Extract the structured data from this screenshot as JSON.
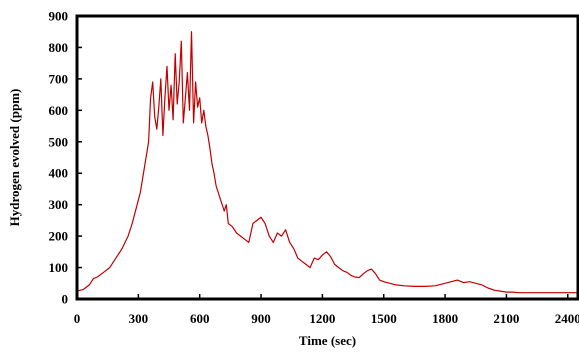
{
  "chart_data": {
    "type": "line",
    "title": "",
    "xlabel": "Time (sec)",
    "ylabel": "Hydrogen evolved (ppm)",
    "xlim": [
      0,
      2450
    ],
    "ylim": [
      0,
      900
    ],
    "x_ticks": [
      0,
      300,
      600,
      900,
      1200,
      1500,
      1800,
      2100,
      2400
    ],
    "x_tick_labels": [
      "0",
      "300",
      "600",
      "900",
      "1200",
      "1500",
      "1800",
      "2100",
      "2400"
    ],
    "y_ticks": [
      0,
      100,
      200,
      300,
      400,
      500,
      600,
      700,
      800,
      900
    ],
    "y_tick_labels": [
      "0",
      "100",
      "200",
      "300",
      "400",
      "500",
      "600",
      "700",
      "800",
      "900"
    ],
    "grid": false,
    "legend": "none",
    "series": [
      {
        "color": "#c00000",
        "x": [
          0,
          30,
          60,
          80,
          100,
          130,
          160,
          190,
          220,
          250,
          270,
          290,
          310,
          330,
          350,
          360,
          370,
          380,
          390,
          400,
          410,
          420,
          430,
          440,
          450,
          460,
          470,
          480,
          490,
          500,
          510,
          520,
          530,
          540,
          550,
          560,
          570,
          580,
          590,
          600,
          610,
          620,
          630,
          640,
          650,
          660,
          670,
          680,
          690,
          700,
          710,
          720,
          730,
          740,
          760,
          780,
          800,
          820,
          840,
          860,
          880,
          900,
          920,
          940,
          960,
          980,
          1000,
          1020,
          1040,
          1060,
          1080,
          1100,
          1120,
          1140,
          1160,
          1180,
          1200,
          1220,
          1240,
          1260,
          1280,
          1300,
          1320,
          1340,
          1360,
          1380,
          1400,
          1420,
          1440,
          1460,
          1480,
          1500,
          1530,
          1560,
          1600,
          1650,
          1700,
          1750,
          1800,
          1830,
          1860,
          1890,
          1920,
          1950,
          1980,
          2010,
          2040,
          2070,
          2100,
          2130,
          2160,
          2200,
          2250,
          2300,
          2350,
          2400,
          2450
        ],
        "values": [
          25,
          30,
          45,
          65,
          70,
          85,
          100,
          130,
          160,
          200,
          240,
          290,
          340,
          420,
          500,
          640,
          690,
          580,
          540,
          610,
          700,
          520,
          640,
          740,
          600,
          680,
          570,
          780,
          620,
          690,
          820,
          560,
          640,
          720,
          600,
          850,
          560,
          690,
          610,
          640,
          560,
          600,
          550,
          520,
          480,
          430,
          400,
          360,
          340,
          320,
          300,
          280,
          300,
          240,
          230,
          210,
          200,
          190,
          180,
          240,
          250,
          260,
          240,
          200,
          180,
          210,
          200,
          220,
          180,
          160,
          130,
          120,
          110,
          100,
          130,
          125,
          140,
          150,
          135,
          110,
          100,
          90,
          85,
          75,
          70,
          68,
          80,
          90,
          95,
          80,
          60,
          55,
          50,
          45,
          42,
          40,
          40,
          42,
          50,
          55,
          60,
          52,
          55,
          50,
          45,
          35,
          28,
          25,
          22,
          22,
          20,
          20,
          20,
          20,
          20,
          20,
          20
        ]
      }
    ]
  }
}
